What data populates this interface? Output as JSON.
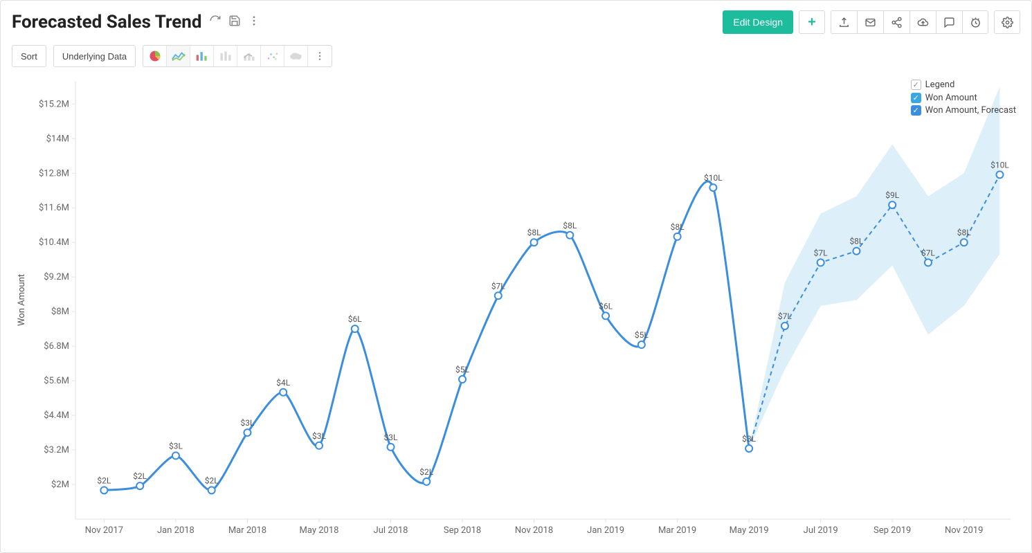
{
  "header": {
    "title": "Forecasted Sales Trend",
    "edit_design_label": "Edit Design"
  },
  "secondbar": {
    "sort_label": "Sort",
    "underlying_label": "Underlying Data"
  },
  "chart": {
    "type": "line-with-forecast",
    "y_axis_title": "Won Amount",
    "colors": {
      "series_line": "#3b8ede",
      "series_line_width": 3,
      "marker_fill": "#ffffff",
      "marker_stroke": "#3b8ede",
      "marker_stroke_width": 2,
      "marker_radius": 5,
      "forecast_line": "#3b8ede",
      "forecast_dash": "6,5",
      "forecast_line_width": 2,
      "forecast_band_fill": "#cfe8f5",
      "forecast_band_opacity": 0.7,
      "axis_color": "#e2e2e2",
      "axis_text_color": "#666666",
      "label_color": "#555555",
      "background": "#ffffff"
    },
    "y_ticks": [
      {
        "y": 2.0,
        "label": "$2M"
      },
      {
        "y": 3.2,
        "label": "$3.2M"
      },
      {
        "y": 4.4,
        "label": "$4.4M"
      },
      {
        "y": 5.6,
        "label": "$5.6M"
      },
      {
        "y": 6.8,
        "label": "$6.8M"
      },
      {
        "y": 8.0,
        "label": "$8M"
      },
      {
        "y": 9.2,
        "label": "$9.2M"
      },
      {
        "y": 10.4,
        "label": "$10.4M"
      },
      {
        "y": 11.6,
        "label": "$11.6M"
      },
      {
        "y": 12.8,
        "label": "$12.8M"
      },
      {
        "y": 14.0,
        "label": "$14M"
      },
      {
        "y": 15.2,
        "label": "$15.2M"
      }
    ],
    "x_ticks": [
      {
        "m": 0,
        "label": "Nov 2017"
      },
      {
        "m": 2,
        "label": "Jan 2018"
      },
      {
        "m": 4,
        "label": "Mar 2018"
      },
      {
        "m": 6,
        "label": "May 2018"
      },
      {
        "m": 8,
        "label": "Jul 2018"
      },
      {
        "m": 10,
        "label": "Sep 2018"
      },
      {
        "m": 12,
        "label": "Nov 2018"
      },
      {
        "m": 14,
        "label": "Jan 2019"
      },
      {
        "m": 16,
        "label": "Mar 2019"
      },
      {
        "m": 18,
        "label": "May 2019"
      },
      {
        "m": 20,
        "label": "Jul 2019"
      },
      {
        "m": 22,
        "label": "Sep 2019"
      },
      {
        "m": 24,
        "label": "Nov 2019"
      }
    ],
    "ylim": [
      0.8,
      16.0
    ],
    "xlim": [
      -0.8,
      25.3
    ],
    "label_fontsize": 12,
    "tick_fontsize": 13,
    "actual": [
      {
        "m": 0,
        "y": 1.8,
        "label": "$2L"
      },
      {
        "m": 1,
        "y": 1.95,
        "label": "$2L"
      },
      {
        "m": 2,
        "y": 3.0,
        "label": "$3L"
      },
      {
        "m": 3,
        "y": 1.8,
        "label": "$2L"
      },
      {
        "m": 4,
        "y": 3.8,
        "label": "$3L"
      },
      {
        "m": 5,
        "y": 5.2,
        "label": "$4L"
      },
      {
        "m": 6,
        "y": 3.35,
        "label": "$3L"
      },
      {
        "m": 7,
        "y": 7.4,
        "label": "$6L"
      },
      {
        "m": 8,
        "y": 3.3,
        "label": "$3L"
      },
      {
        "m": 9,
        "y": 2.1,
        "label": "$2L"
      },
      {
        "m": 10,
        "y": 5.65,
        "label": "$5L"
      },
      {
        "m": 11,
        "y": 8.55,
        "label": "$7L"
      },
      {
        "m": 12,
        "y": 10.4,
        "label": "$8L"
      },
      {
        "m": 13,
        "y": 10.65,
        "label": "$8L"
      },
      {
        "m": 14,
        "y": 7.85,
        "label": "$6L"
      },
      {
        "m": 15,
        "y": 6.85,
        "label": "$5L"
      },
      {
        "m": 16,
        "y": 10.6,
        "label": "$8L"
      },
      {
        "m": 17,
        "y": 12.3,
        "label": "$10L"
      },
      {
        "m": 18,
        "y": 3.25,
        "label": "$3L"
      }
    ],
    "smoothing": 0.35,
    "forecast": [
      {
        "m": 18,
        "y": 3.25,
        "label": "",
        "lo": 3.25,
        "hi": 3.25
      },
      {
        "m": 19,
        "y": 7.5,
        "label": "$7L",
        "lo": 6.0,
        "hi": 9.0
      },
      {
        "m": 20,
        "y": 9.7,
        "label": "$7L",
        "lo": 8.2,
        "hi": 11.4
      },
      {
        "m": 21,
        "y": 10.1,
        "label": "$8L",
        "lo": 8.4,
        "hi": 12.0
      },
      {
        "m": 22,
        "y": 11.7,
        "label": "$9L",
        "lo": 9.6,
        "hi": 13.8
      },
      {
        "m": 23,
        "y": 9.7,
        "label": "$7L",
        "lo": 7.2,
        "hi": 12.0
      },
      {
        "m": 24,
        "y": 10.4,
        "label": "$8L",
        "lo": 8.2,
        "hi": 12.8
      },
      {
        "m": 25,
        "y": 12.75,
        "label": "$10L",
        "lo": 10.0,
        "hi": 15.8
      }
    ],
    "legend": {
      "title": "Legend",
      "items": [
        {
          "label": "Won Amount",
          "color": "#3ba7e0"
        },
        {
          "label": "Won Amount, Forecast",
          "color": "#3b8ede"
        }
      ]
    }
  }
}
